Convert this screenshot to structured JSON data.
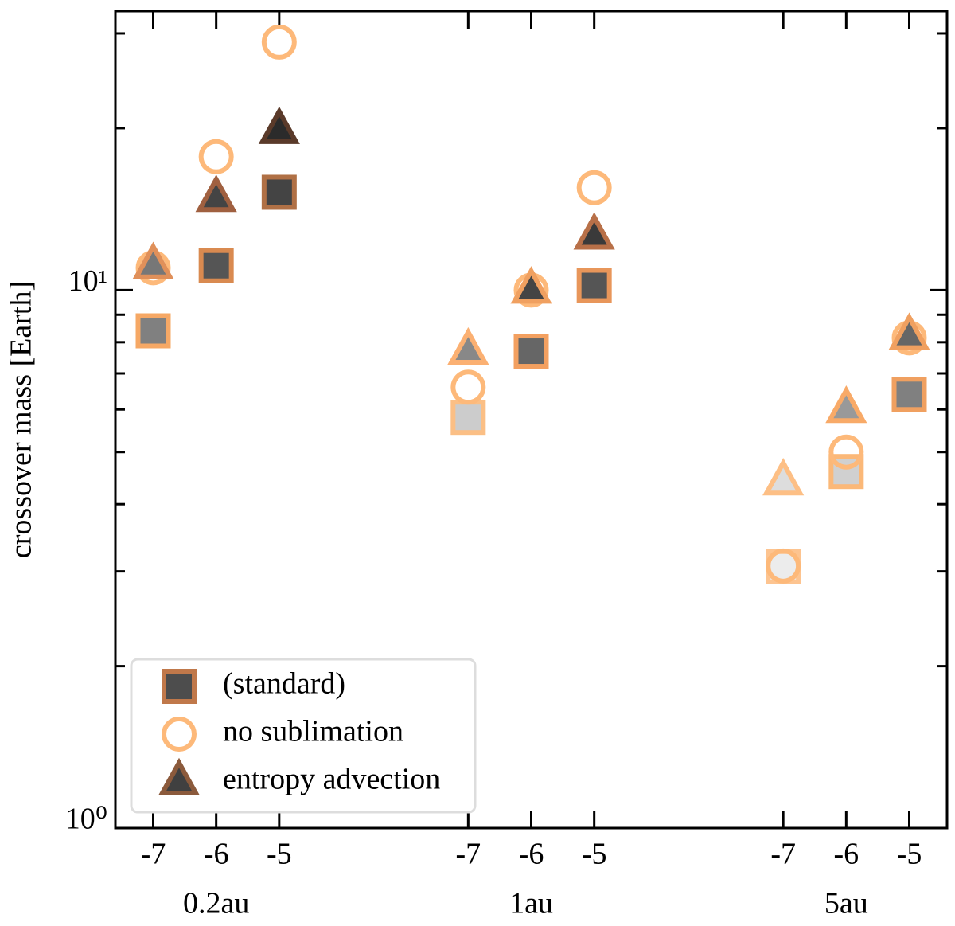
{
  "chart_data": {
    "type": "scatter",
    "y_label": "crossover mass [Earth]",
    "categories": [
      "-7",
      "-6",
      "-5",
      null,
      null,
      "-7",
      "-6",
      "-5",
      null,
      null,
      "-7",
      "-6",
      "-5"
    ],
    "groups": [
      "0.2au",
      "1au",
      "5au"
    ],
    "log_y": true,
    "ylim": [
      1,
      33
    ],
    "yticks": [
      {
        "value": 1,
        "label": "10⁰"
      },
      {
        "value": 10,
        "label": "10¹"
      }
    ],
    "yminor": [
      2,
      3,
      4,
      5,
      6,
      7,
      8,
      9,
      20,
      30
    ],
    "legend": "lower left",
    "series": [
      {
        "name": "(standard)",
        "marker": "square",
        "color": "#4d4d4d",
        "edge_color": "#c0784a",
        "face_colors": [
          "#808080",
          "#555555",
          "#444444",
          null,
          null,
          "#cccccc",
          "#666666",
          "#555555",
          null,
          null,
          "#ececec",
          "#d0d0d0",
          "#808080"
        ],
        "edge_colors": [
          "#f6a865",
          "#d98a50",
          "#b07045",
          null,
          null,
          "#fbbf85",
          "#f3a060",
          "#e8965a",
          null,
          null,
          "#fdc490",
          "#fbb878",
          "#f0a060"
        ],
        "values": [
          8.4,
          11.1,
          15.2,
          null,
          null,
          5.8,
          7.7,
          10.2,
          null,
          null,
          3.06,
          4.6,
          6.4
        ]
      },
      {
        "name": "no sublimation",
        "marker": "circle",
        "color": "#fdb97a",
        "values": [
          11.0,
          17.7,
          28.9,
          null,
          null,
          6.6,
          10.0,
          15.5,
          null,
          null,
          3.07,
          5.0,
          8.15
        ]
      },
      {
        "name": "entropy advection",
        "marker": "triangle",
        "color": "#404040",
        "edge_color": "#8b5a3c",
        "face_colors": [
          "#777777",
          "#444444",
          "#2b2b2b",
          null,
          null,
          "#888888",
          "#444444",
          "#3a3a3a",
          null,
          null,
          "#dddddd",
          "#999999",
          "#666666"
        ],
        "edge_colors": [
          "#e0905a",
          "#a06040",
          "#5a3a2a",
          null,
          null,
          "#fbb072",
          "#f0a060",
          "#b87048",
          null,
          null,
          "#fdbf85",
          "#f8aa68",
          "#f0a060"
        ],
        "values": [
          11.1,
          14.8,
          19.8,
          null,
          null,
          7.7,
          10.0,
          12.6,
          null,
          null,
          4.4,
          6.0,
          8.2
        ]
      }
    ]
  }
}
